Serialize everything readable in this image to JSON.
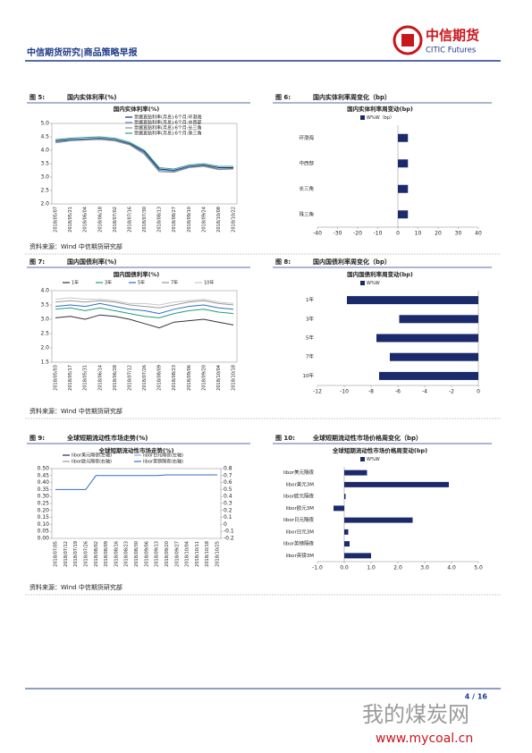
{
  "header": {
    "title": "中信期货研究|商品策略早报",
    "logo_cn": "中信期货",
    "logo_en": "CITIC Futures"
  },
  "figures": [
    {
      "label": "图 5:",
      "title": "国内实体利率(%)",
      "source": "资料来源：Wind 中信期货研究部",
      "chart_data": {
        "type": "line",
        "title": "国内实体利率(%)",
        "categories": [
          "2018/05/07",
          "2018/05/21",
          "2018/06/04",
          "2018/06/18",
          "2018/07/02",
          "2018/07/16",
          "2018/07/30",
          "2018/08/13",
          "2018/08/27",
          "2018/09/10",
          "2018/09/24",
          "2018/10/08",
          "2018/10/22"
        ],
        "series": [
          {
            "name": "票据直贴利率(月息):6个月:环渤海",
            "color": "#1b2a6b",
            "values": [
              4.35,
              4.4,
              4.42,
              4.45,
              4.4,
              4.25,
              3.95,
              3.3,
              3.25,
              3.4,
              3.45,
              3.35,
              3.35
            ]
          },
          {
            "name": "票据直贴利率(月息):6个月:中西部",
            "color": "#4a86c8",
            "values": [
              4.3,
              4.38,
              4.4,
              4.43,
              4.38,
              4.22,
              3.9,
              3.25,
              3.22,
              3.38,
              3.42,
              3.3,
              3.32
            ]
          },
          {
            "name": "票据直贴利率(月息):6个月:长三角",
            "color": "#8c8c8c",
            "values": [
              4.28,
              4.35,
              4.38,
              4.4,
              4.35,
              4.2,
              3.85,
              3.2,
              3.18,
              3.35,
              3.4,
              3.28,
              3.3
            ]
          },
          {
            "name": "票据直贴利率(月息):6个月:珠三角",
            "color": "#2e9c8c",
            "values": [
              4.4,
              4.45,
              4.48,
              4.5,
              4.45,
              4.3,
              4.0,
              3.35,
              3.3,
              3.45,
              3.5,
              3.4,
              3.4
            ]
          }
        ],
        "ylim": [
          2,
          5
        ],
        "yticks": [
          {
            "value": 2,
            "label": "2.0"
          },
          2.5,
          {
            "value": 3,
            "label": "3.0"
          },
          3.5,
          {
            "value": 4,
            "label": "4.0"
          },
          4.5,
          {
            "value": 5,
            "label": "5.0"
          }
        ]
      }
    },
    {
      "label": "图 6:",
      "title": "国内实体利率周变化（bp）",
      "chart_data": {
        "type": "hbar",
        "title": "国内实体利率周变动(bp)",
        "legend": "W%W（bp）",
        "color": "#1b2a6b",
        "categories": [
          "环渤海",
          "中西部",
          "长三角",
          "珠三角"
        ],
        "values": [
          5,
          5,
          5,
          5
        ],
        "xlim": [
          -40,
          40
        ],
        "xticks": [
          -40,
          -30,
          -20,
          -10,
          0,
          10,
          20,
          30,
          40
        ]
      }
    },
    {
      "label": "图 7:",
      "title": "国内国债利率(%)",
      "source": "资料来源：Wind 中信期货研究部",
      "chart_data": {
        "type": "line",
        "title": "国内国债利率(%)",
        "categories": [
          "2018/05/03",
          "2018/05/17",
          "2018/05/31",
          "2018/06/14",
          "2018/06/28",
          "2018/07/12",
          "2018/07/26",
          "2018/08/09",
          "2018/08/23",
          "2018/09/06",
          "2018/09/20",
          "2018/10/04",
          "2018/10/18"
        ],
        "series": [
          {
            "name": "1年",
            "color": "#333333",
            "values": [
              3.05,
              3.1,
              3.0,
              3.15,
              3.1,
              3.0,
              2.85,
              2.7,
              2.9,
              2.95,
              3.0,
              2.9,
              2.8
            ]
          },
          {
            "name": "3年",
            "color": "#1f9c7a",
            "values": [
              3.35,
              3.4,
              3.3,
              3.4,
              3.3,
              3.2,
              3.1,
              3.05,
              3.2,
              3.3,
              3.35,
              3.25,
              3.2
            ]
          },
          {
            "name": "5年",
            "color": "#2f6fc0",
            "values": [
              3.45,
              3.5,
              3.45,
              3.55,
              3.45,
              3.35,
              3.3,
              3.2,
              3.35,
              3.45,
              3.5,
              3.4,
              3.35
            ]
          },
          {
            "name": "7年",
            "color": "#9a9a9a",
            "values": [
              3.6,
              3.65,
              3.6,
              3.65,
              3.6,
              3.5,
              3.45,
              3.4,
              3.5,
              3.6,
              3.65,
              3.55,
              3.5
            ]
          },
          {
            "name": "10年",
            "color": "#c8c8c8",
            "values": [
              3.7,
              3.75,
              3.7,
              3.7,
              3.65,
              3.55,
              3.55,
              3.5,
              3.6,
              3.65,
              3.7,
              3.6,
              3.55
            ]
          }
        ],
        "ylim": [
          1.5,
          4
        ],
        "yticks": [
          1.5,
          {
            "value": 2,
            "label": "2.0"
          },
          2.5,
          {
            "value": 3,
            "label": "3.0"
          },
          3.5,
          {
            "value": 4,
            "label": "4.0"
          }
        ]
      }
    },
    {
      "label": "图 8:",
      "title": "国内国债利率周变化（bp）",
      "chart_data": {
        "type": "hbar",
        "title": "国内国债利率周变动(bp)",
        "legend": "W%W",
        "color": "#1b2a6b",
        "categories": [
          "1年",
          "3年",
          "5年",
          "7年",
          "10年"
        ],
        "values": [
          -9.8,
          -5.9,
          -7.6,
          -6.6,
          -7.4
        ],
        "xlim": [
          -12,
          0
        ],
        "xticks": [
          -12,
          -10,
          -8,
          -6,
          -4,
          -2,
          0
        ]
      }
    },
    {
      "label": "图 9:",
      "title": "全球短期流动性市场走势(%)",
      "source": "资料来源：Wind 中信期货研究部",
      "chart_data": {
        "type": "line",
        "title": "全球短期流动性市场走势(%)",
        "categories": [
          "2018/07/05",
          "2018/07/12",
          "2018/07/19",
          "2018/07/26",
          "2018/08/02",
          "2018/08/09",
          "2018/08/16",
          "2018/08/23",
          "2018/08/30",
          "2018/09/06",
          "2018/09/13",
          "2018/09/20",
          "2018/09/27",
          "2018/10/04",
          "2018/10/11",
          "2018/10/18",
          "2018/10/25"
        ],
        "series": [
          {
            "name": "libor美元隔夜(左轴)",
            "color": "#1b2a6b",
            "values": [
              null,
              null,
              null,
              null,
              null,
              null,
              null,
              null,
              null,
              null,
              null,
              null,
              null,
              null,
              null,
              null,
              null
            ]
          },
          {
            "name": "libor日元隔夜(左轴)",
            "color": "#7fb2e5",
            "values": [
              null,
              null,
              null,
              null,
              null,
              null,
              null,
              null,
              null,
              null,
              null,
              null,
              null,
              null,
              null,
              null,
              null
            ]
          },
          {
            "name": "libor欧元隔夜(右轴)",
            "color": "#9a9a9a",
            "axis": "y2",
            "values": [
              null,
              null,
              null,
              null,
              null,
              null,
              null,
              null,
              null,
              null,
              null,
              null,
              null,
              null,
              null,
              null,
              null
            ]
          },
          {
            "name": "libor英镑隔夜(右轴)",
            "color": "#2f6fc0",
            "axis": "y2",
            "values": [
              0.5,
              0.5,
              0.5,
              0.5,
              0.7,
              0.7,
              0.7,
              0.7,
              0.7,
              0.7,
              0.7,
              0.71,
              0.71,
              0.71,
              0.71,
              0.71,
              0.71
            ]
          }
        ],
        "ylim": [
          0,
          0.5
        ],
        "yticks": [
          {
            "value": 0,
            "label": "0.00"
          },
          0.05,
          {
            "value": 0.1,
            "label": "0.10"
          },
          0.15,
          {
            "value": 0.2,
            "label": "0.20"
          },
          0.25,
          {
            "value": 0.3,
            "label": "0.30"
          },
          0.35,
          {
            "value": 0.4,
            "label": "0.40"
          },
          0.45,
          {
            "value": 0.5,
            "label": "0.50"
          }
        ],
        "y2lim": [
          -0.2,
          0.8
        ],
        "y2ticks": [
          -0.2,
          -0.1,
          0,
          0.1,
          0.2,
          0.3,
          0.4,
          0.5,
          0.6,
          0.7,
          0.8
        ]
      }
    },
    {
      "label": "图 10:",
      "title": "全球短期流动性市场价格周变化（bp）",
      "chart_data": {
        "type": "hbar",
        "title": "全球短期流动性市场价格周变动(bp)",
        "legend": "W%W",
        "color": "#1b2a6b",
        "categories": [
          "libor美元隔夜",
          "libor美元3M",
          "libor欧元隔夜",
          "libor欧元3M",
          "libor日元隔夜",
          "libor日元3M",
          "libor英镑隔夜",
          "libor英镑3M"
        ],
        "values": [
          0.85,
          3.9,
          0.05,
          -0.4,
          2.55,
          0.15,
          0.2,
          1.0
        ],
        "xlim": [
          -1,
          5
        ],
        "xticks": [
          {
            "value": -1,
            "label": "-1.0"
          },
          {
            "value": 0,
            "label": "0.0"
          },
          {
            "value": 1,
            "label": "1.0"
          },
          {
            "value": 2,
            "label": "2.0"
          },
          {
            "value": 3,
            "label": "3.0"
          },
          {
            "value": 4,
            "label": "4.0"
          },
          {
            "value": 5,
            "label": "5.0"
          }
        ]
      }
    }
  ],
  "footer": {
    "page": "4 / 16"
  },
  "watermark": {
    "name": "我的煤炭网",
    "url": "www.mycoal.cn"
  }
}
